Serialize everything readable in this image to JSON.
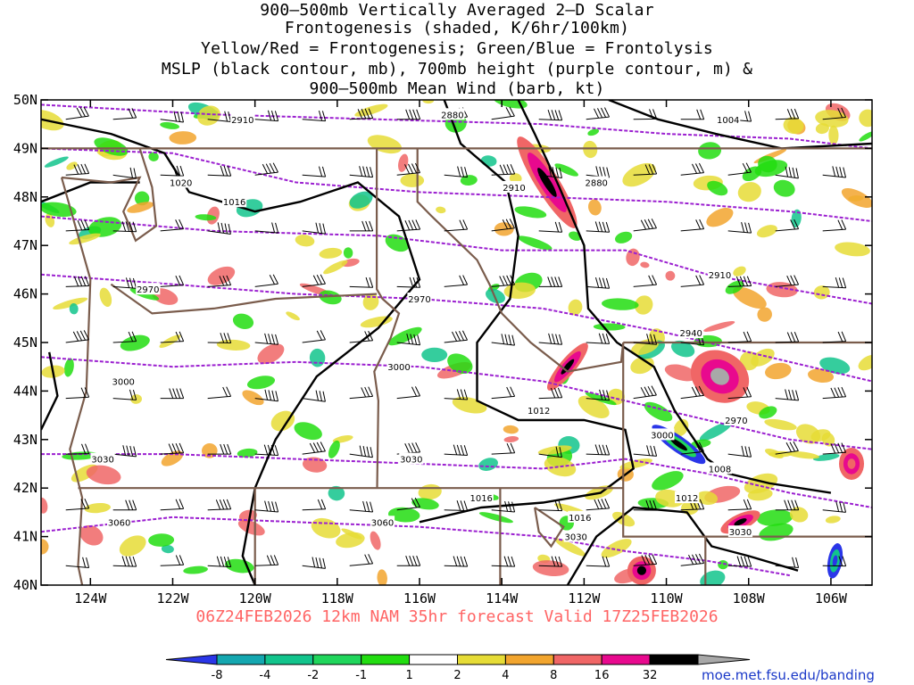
{
  "titles": [
    "900–500mb Vertically Averaged 2–D Scalar",
    "Frontogenesis (shaded, K/6hr/100km)",
    "Yellow/Red = Frontogenesis;  Green/Blue = Frontolysis",
    "MSLP (black contour, mb), 700mb height (purple contour, m) &",
    "900–500mb Mean Wind (barb, kt)"
  ],
  "lat_labels": [
    "50N",
    "49N",
    "48N",
    "47N",
    "46N",
    "45N",
    "44N",
    "43N",
    "42N",
    "41N",
    "40N"
  ],
  "lon_labels": [
    "124W",
    "122W",
    "120W",
    "118W",
    "116W",
    "114W",
    "112W",
    "110W",
    "108W",
    "106W"
  ],
  "height_labels": [
    {
      "text": "2910",
      "lon": -120.3,
      "lat": 49.6
    },
    {
      "text": "2880",
      "lon": -115.2,
      "lat": 49.7
    },
    {
      "text": "2910",
      "lon": -113.7,
      "lat": 48.2
    },
    {
      "text": "2880",
      "lon": -111.7,
      "lat": 48.3
    },
    {
      "text": "2910",
      "lon": -108.7,
      "lat": 46.4
    },
    {
      "text": "2940",
      "lon": -109.4,
      "lat": 45.2
    },
    {
      "text": "2970",
      "lon": -122.6,
      "lat": 46.1
    },
    {
      "text": "2970",
      "lon": -116.0,
      "lat": 45.9
    },
    {
      "text": "2970",
      "lon": -108.3,
      "lat": 43.4
    },
    {
      "text": "3000",
      "lon": -123.2,
      "lat": 44.2
    },
    {
      "text": "3000",
      "lon": -116.5,
      "lat": 44.5
    },
    {
      "text": "3000",
      "lon": -110.1,
      "lat": 43.1
    },
    {
      "text": "3030",
      "lon": -123.7,
      "lat": 42.6
    },
    {
      "text": "3030",
      "lon": -116.2,
      "lat": 42.6
    },
    {
      "text": "3030",
      "lon": -108.2,
      "lat": 41.1
    },
    {
      "text": "3030",
      "lon": -112.2,
      "lat": 41.0
    },
    {
      "text": "3060",
      "lon": -123.3,
      "lat": 41.3
    },
    {
      "text": "3060",
      "lon": -116.9,
      "lat": 41.3
    }
  ],
  "pressure_labels": [
    {
      "text": "1004",
      "lon": -108.5,
      "lat": 49.6
    },
    {
      "text": "1020",
      "lon": -121.8,
      "lat": 48.3
    },
    {
      "text": "1016",
      "lon": -120.5,
      "lat": 47.9
    },
    {
      "text": "1012",
      "lon": -113.1,
      "lat": 43.6
    },
    {
      "text": "1016",
      "lon": -114.5,
      "lat": 41.8
    },
    {
      "text": "1016",
      "lon": -112.1,
      "lat": 41.4
    },
    {
      "text": "1012",
      "lon": -109.5,
      "lat": 41.8
    },
    {
      "text": "1008",
      "lon": -108.7,
      "lat": 42.4
    }
  ],
  "footer": "06Z24FEB2026 12km NAM 35hr forecast Valid 17Z25FEB2026",
  "colorbar": {
    "labels": [
      "-8",
      "-4",
      "-2",
      "-1",
      "1",
      "2",
      "4",
      "8",
      "16",
      "32"
    ],
    "colors": [
      "#2a36e8",
      "#14a7b0",
      "#12c48c",
      "#20d65c",
      "#22dd11",
      "#ffffff",
      "#e6dc36",
      "#f2a52e",
      "#f06666",
      "#e8098e",
      "#000000",
      "#a8a8a8"
    ]
  },
  "credit": "moe.met.fsu.edu/banding",
  "colors": {
    "state_border": "#7a5c4c",
    "height_contour": "#9b1fd0",
    "pressure_contour": "#000000",
    "footer_text": "#ff6464",
    "credit_text": "#1a38c8"
  }
}
